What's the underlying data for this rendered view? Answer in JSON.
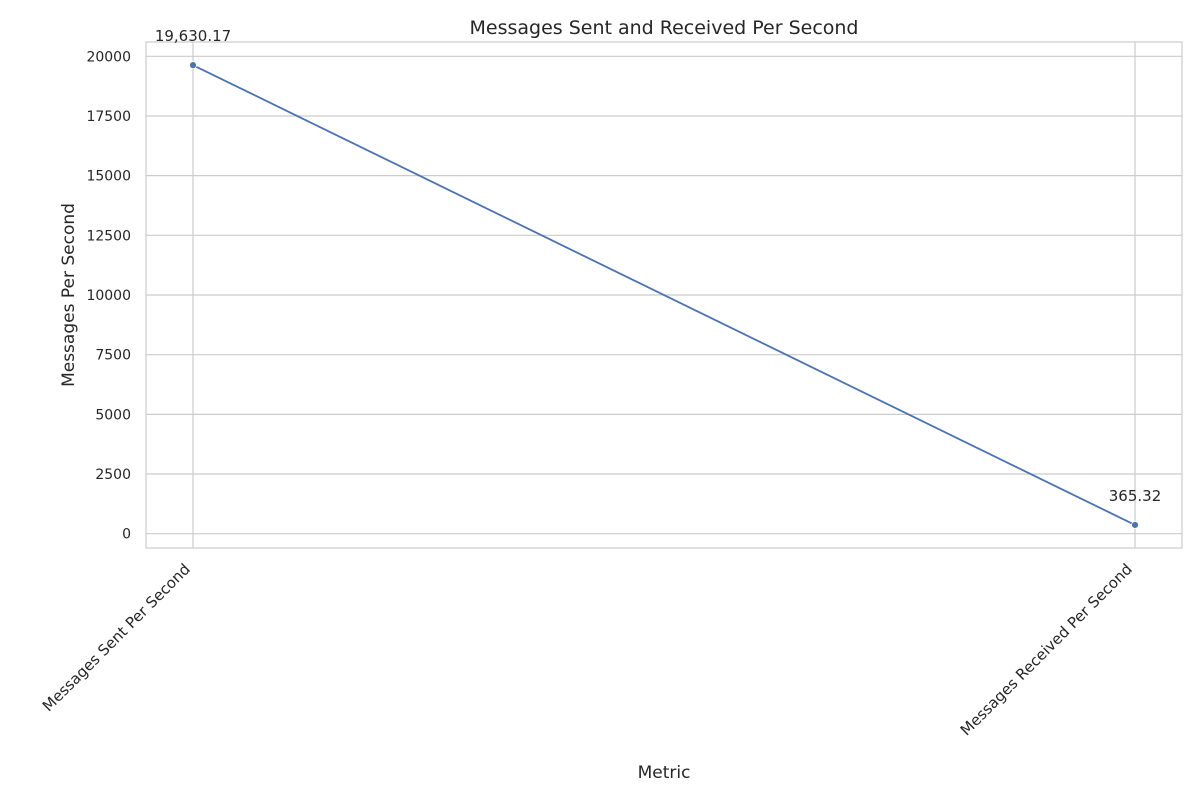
{
  "chart_data": {
    "type": "line",
    "title": "Messages Sent and Received Per Second",
    "xlabel": "Metric",
    "ylabel": "Messages Per Second",
    "categories": [
      "Messages Sent Per Second",
      "Messages Received Per Second"
    ],
    "series": [
      {
        "values": [
          19630.17,
          365.32
        ],
        "color": "#4c72b0"
      }
    ],
    "data_labels": [
      "19,630.17",
      "365.32"
    ],
    "yticks": [
      0,
      2500,
      5000,
      7500,
      10000,
      12500,
      15000,
      17500,
      20000
    ],
    "ylim": [
      -600,
      20600
    ],
    "grid": true,
    "legend": "none"
  }
}
